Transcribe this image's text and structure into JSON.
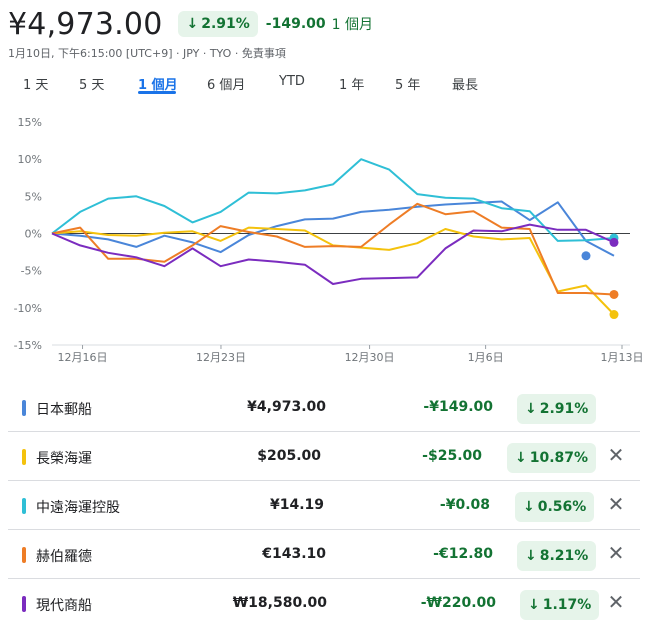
{
  "header": {
    "price": "¥4,973.00",
    "pct_change": "2.91%",
    "abs_change": "-149.00",
    "period": "1 個月",
    "subline": "1月10日, 下午6:15:00 [UTC+9] · JPY · TYO · 免責事項"
  },
  "tabs": [
    {
      "label": "1 天"
    },
    {
      "label": "5 天"
    },
    {
      "label": "1 個月"
    },
    {
      "label": "6 個月"
    },
    {
      "label": "YTD"
    },
    {
      "label": "1 年"
    },
    {
      "label": "5 年"
    },
    {
      "label": "最長"
    }
  ],
  "colors": {
    "blue": "#4a86d9",
    "yellow": "#f4c20d",
    "cyan": "#2fbfd6",
    "orange": "#ee7d26",
    "purple": "#7b2cbf",
    "green": "#137333",
    "green_bg": "#e6f4ea"
  },
  "chart_data": {
    "type": "line",
    "y_ticks": [
      "15%",
      "10%",
      "5%",
      "0%",
      "-5%",
      "-10%",
      "-15%"
    ],
    "x_ticks": [
      "12月16日",
      "12月23日",
      "12月30日",
      "1月6日",
      "1月13日"
    ],
    "ylim": [
      -15,
      15
    ],
    "series": [
      {
        "name": "日本郵船",
        "color": "#4a86d9",
        "values": [
          0,
          -0.3,
          -0.8,
          -1.8,
          -0.3,
          -1.2,
          -2.5,
          -0.2,
          1.0,
          1.9,
          2.0,
          2.9,
          3.2,
          3.6,
          3.9,
          4.1,
          4.3,
          1.8,
          4.2,
          -1.0,
          -3.0
        ]
      },
      {
        "name": "長榮海運",
        "color": "#f4c20d",
        "values": [
          0,
          0.3,
          -0.2,
          -0.3,
          0.1,
          0.3,
          -1.0,
          0.8,
          0.6,
          0.4,
          -1.6,
          -1.9,
          -2.2,
          -1.3,
          0.6,
          -0.4,
          -0.8,
          -0.6,
          -7.8,
          -7.0,
          -10.9
        ]
      },
      {
        "name": "中遠海運控股",
        "color": "#2fbfd6",
        "values": [
          0,
          2.9,
          4.7,
          5.0,
          3.7,
          1.5,
          2.9,
          5.5,
          5.4,
          5.8,
          6.6,
          10.0,
          8.6,
          5.3,
          4.8,
          4.7,
          3.4,
          3.0,
          -1.0,
          -0.9,
          -0.6
        ]
      },
      {
        "name": "赫伯羅德",
        "color": "#ee7d26",
        "values": [
          0,
          0.8,
          -3.4,
          -3.4,
          -3.8,
          -1.6,
          1.0,
          0.2,
          -0.4,
          -1.8,
          -1.7,
          -1.8,
          1.2,
          4.0,
          2.6,
          3.0,
          0.8,
          0.6,
          -8.0,
          -8.0,
          -8.2
        ]
      },
      {
        "name": "現代商船",
        "color": "#7b2cbf",
        "values": [
          0,
          -1.6,
          -2.6,
          -3.2,
          -4.4,
          -2.0,
          -4.4,
          -3.5,
          -3.8,
          -4.2,
          -6.8,
          -6.1,
          -6.0,
          -5.9,
          -2.0,
          0.4,
          0.3,
          1.2,
          0.5,
          0.5,
          -1.2
        ]
      }
    ]
  },
  "rows": [
    {
      "name": "日本郵船",
      "price": "¥4,973.00",
      "change": "-¥149.00",
      "pct": "2.91%",
      "color": "#4a86d9",
      "removable": false
    },
    {
      "name": "長榮海運",
      "price": "$205.00",
      "change": "-$25.00",
      "pct": "10.87%",
      "color": "#f4c20d",
      "removable": true
    },
    {
      "name": "中遠海運控股",
      "price": "¥14.19",
      "change": "-¥0.08",
      "pct": "0.56%",
      "color": "#2fbfd6",
      "removable": true
    },
    {
      "name": "赫伯羅德",
      "price": "€143.10",
      "change": "-€12.80",
      "pct": "8.21%",
      "color": "#ee7d26",
      "removable": true
    },
    {
      "name": "現代商船",
      "price": "₩18,580.00",
      "change": "-₩220.00",
      "pct": "1.17%",
      "color": "#7b2cbf",
      "removable": true
    }
  ],
  "icons": {
    "down_arrow": "down-arrow-icon",
    "close": "close-icon"
  }
}
